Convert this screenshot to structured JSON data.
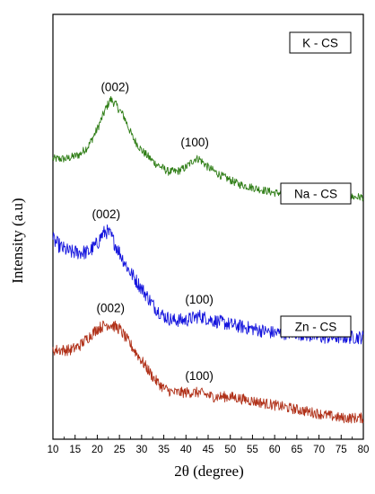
{
  "chart_data": {
    "type": "line",
    "title": "",
    "xlabel": "2θ (degree)",
    "ylabel": "Intensity (a.u)",
    "xlim": [
      10,
      80
    ],
    "xticks": [
      10,
      15,
      20,
      25,
      30,
      35,
      40,
      45,
      50,
      55,
      60,
      65,
      70,
      75,
      80
    ],
    "yticks_shown": false,
    "grid": false,
    "layout": "stacked vertically offset",
    "series": [
      {
        "name": "K - CS",
        "color": "#2e7d15",
        "x": [
          10,
          13,
          16,
          18,
          20,
          22,
          23,
          24,
          26,
          28,
          30,
          33,
          36,
          38,
          40,
          42,
          43,
          45,
          48,
          52,
          56,
          60,
          65,
          70,
          75,
          80
        ],
        "y": [
          0.66,
          0.66,
          0.67,
          0.69,
          0.73,
          0.78,
          0.8,
          0.79,
          0.76,
          0.71,
          0.68,
          0.65,
          0.63,
          0.63,
          0.64,
          0.66,
          0.66,
          0.64,
          0.62,
          0.6,
          0.59,
          0.58,
          0.58,
          0.57,
          0.57,
          0.57
        ],
        "peaks": [
          {
            "x": 24,
            "label": "(002)"
          },
          {
            "x": 42,
            "label": "(100)"
          }
        ]
      },
      {
        "name": "Na - CS",
        "color": "#1414dd",
        "x": [
          10,
          12,
          14,
          16,
          18,
          20,
          21,
          22,
          23,
          25,
          27,
          29,
          31,
          33,
          35,
          37,
          40,
          43,
          46,
          50,
          55,
          60,
          65,
          70,
          75,
          80
        ],
        "y": [
          0.47,
          0.45,
          0.44,
          0.44,
          0.44,
          0.46,
          0.48,
          0.49,
          0.48,
          0.44,
          0.4,
          0.37,
          0.34,
          0.31,
          0.29,
          0.28,
          0.28,
          0.29,
          0.28,
          0.27,
          0.26,
          0.25,
          0.25,
          0.24,
          0.24,
          0.24
        ],
        "peaks": [
          {
            "x": 22,
            "label": "(002)"
          },
          {
            "x": 43,
            "label": "(100)"
          }
        ]
      },
      {
        "name": "Zn - CS",
        "color": "#b03018",
        "x": [
          10,
          12,
          14,
          16,
          18,
          20,
          22,
          23,
          25,
          27,
          29,
          31,
          33,
          35,
          37,
          40,
          43,
          46,
          50,
          55,
          60,
          65,
          70,
          75,
          80
        ],
        "y": [
          0.21,
          0.21,
          0.21,
          0.22,
          0.24,
          0.26,
          0.27,
          0.27,
          0.26,
          0.23,
          0.2,
          0.17,
          0.14,
          0.12,
          0.11,
          0.11,
          0.11,
          0.1,
          0.1,
          0.09,
          0.08,
          0.07,
          0.06,
          0.05,
          0.05
        ],
        "peaks": [
          {
            "x": 23,
            "label": "(002)"
          },
          {
            "x": 43,
            "label": "(100)"
          }
        ]
      }
    ]
  }
}
